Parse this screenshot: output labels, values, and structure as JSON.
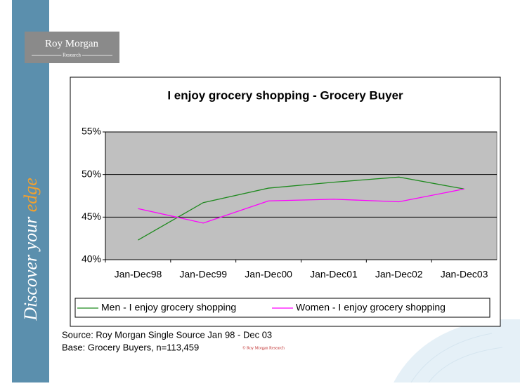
{
  "page": {
    "logo": [
      "Roy Morgan",
      "Research"
    ],
    "tagline": [
      "Discover your",
      "edge"
    ],
    "source": "Source: Roy Morgan Single Source Jan 98 - Dec 03",
    "base": "Base: Grocery Buyers, n=113,459",
    "copyright": "© Roy Morgan Research"
  },
  "chart_data": {
    "type": "line",
    "title": "I enjoy grocery shopping - Grocery Buyer",
    "categories": [
      "Jan-Dec98",
      "Jan-Dec99",
      "Jan-Dec00",
      "Jan-Dec01",
      "Jan-Dec02",
      "Jan-Dec03"
    ],
    "series": [
      {
        "name": "Men - I enjoy grocery shopping",
        "color": "#1e8a1e",
        "values": [
          42.3,
          46.7,
          48.4,
          49.1,
          49.7,
          48.3
        ]
      },
      {
        "name": "Women - I enjoy grocery shopping",
        "color": "#ff00ff",
        "values": [
          46.0,
          44.3,
          46.9,
          47.1,
          46.8,
          48.3
        ]
      }
    ],
    "ylim": [
      40,
      55
    ],
    "yticks": [
      {
        "value": 40,
        "label": "40%"
      },
      {
        "value": 45,
        "label": "45%"
      },
      {
        "value": 50,
        "label": "50%"
      },
      {
        "value": 55,
        "label": "55%"
      }
    ],
    "grid": true,
    "legend": "bottom",
    "plot_background": "#c0c0c0"
  }
}
